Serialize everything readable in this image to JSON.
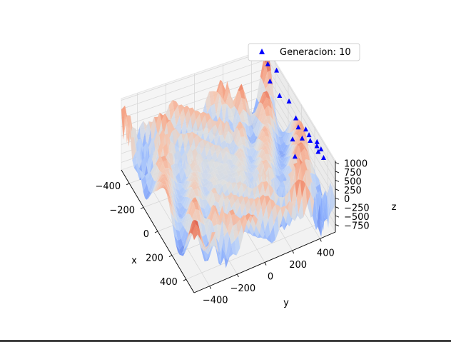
{
  "chart_data": {
    "type": "surface3d",
    "xlabel": "x",
    "ylabel": "y",
    "zlabel": "z",
    "x_ticks": [
      "−400",
      "−200",
      "0",
      "200",
      "400"
    ],
    "y_ticks": [
      "−400",
      "−200",
      "0",
      "200",
      "400"
    ],
    "z_ticks": [
      "1000",
      "750",
      "500",
      "250",
      "0",
      "−250",
      "−500",
      "−750"
    ],
    "xlim": [
      -512,
      512
    ],
    "ylim": [
      -512,
      512
    ],
    "zlim": [
      -960,
      1050
    ],
    "colormap": "coolwarm",
    "grid": true,
    "legend": {
      "position": "top-right",
      "entries": [
        {
          "label": "Generacion: 10",
          "marker": "triangle",
          "color": "#0000ff"
        }
      ]
    },
    "population_marker_color": "#0000ff"
  }
}
